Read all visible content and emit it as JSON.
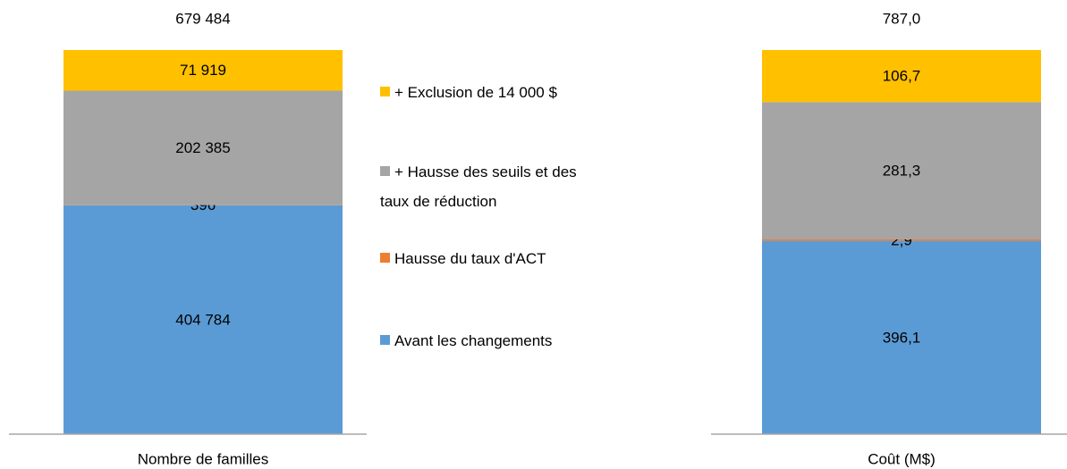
{
  "chart_data": [
    {
      "type": "bar",
      "stacked": true,
      "categories": [
        "Nombre de familles"
      ],
      "total": 679484,
      "total_label": "679 484",
      "series": [
        {
          "name": "Avant les changements",
          "color": "#5b9bd5",
          "values": [
            404784
          ],
          "value_labels": [
            "404 784"
          ]
        },
        {
          "name": "Hausse du taux d'ACT",
          "color": "#ed7d31",
          "values": [
            396
          ],
          "value_labels": [
            "396"
          ]
        },
        {
          "name": "+ Hausse des seuils et des taux de réduction",
          "color": "#a5a5a5",
          "values": [
            202385
          ],
          "value_labels": [
            "202 385"
          ]
        },
        {
          "name": "+ Exclusion de 14 000 $",
          "color": "#ffc000",
          "values": [
            71919
          ],
          "value_labels": [
            "71 919"
          ]
        }
      ]
    },
    {
      "type": "bar",
      "stacked": true,
      "categories": [
        "Coût (M$)"
      ],
      "total": 787.0,
      "total_label": "787,0",
      "series": [
        {
          "color": "#5b9bd5",
          "values": [
            396.1
          ],
          "value_labels": [
            "396,1"
          ]
        },
        {
          "color": "#ed7d31",
          "values": [
            2.9
          ],
          "value_labels": [
            "2,9"
          ]
        },
        {
          "color": "#a5a5a5",
          "values": [
            281.3
          ],
          "value_labels": [
            "281,3"
          ]
        },
        {
          "color": "#ffc000",
          "values": [
            106.7
          ],
          "value_labels": [
            "106,7"
          ]
        }
      ]
    }
  ]
}
